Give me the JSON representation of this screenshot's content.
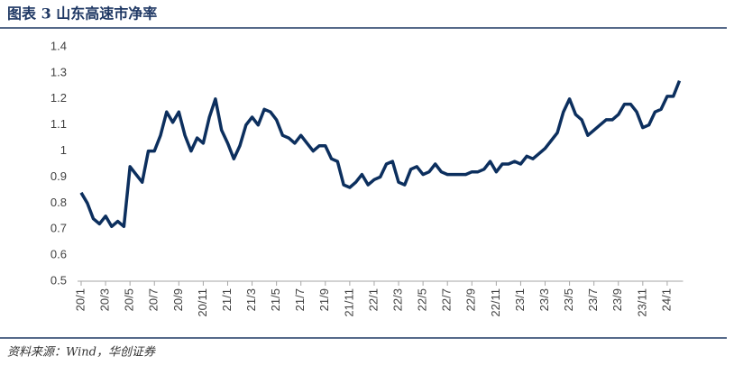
{
  "chart_data": {
    "type": "line",
    "title": "图表 3  山东高速市净率",
    "source": "资料来源：Wind，华创证券",
    "categories": [
      "20/1",
      null,
      null,
      null,
      "20/3",
      null,
      null,
      null,
      "20/5",
      null,
      null,
      null,
      "20/7",
      null,
      null,
      null,
      "20/9",
      null,
      null,
      null,
      "20/11",
      null,
      null,
      null,
      "21/1",
      null,
      null,
      null,
      "21/3",
      null,
      null,
      null,
      "21/5",
      null,
      null,
      null,
      "21/7",
      null,
      null,
      null,
      "21/9",
      null,
      null,
      null,
      "21/11",
      null,
      null,
      null,
      "22/1",
      null,
      null,
      null,
      "22/3",
      null,
      null,
      null,
      "22/5",
      null,
      null,
      null,
      "22/7",
      null,
      null,
      null,
      "22/9",
      null,
      null,
      null,
      "22/11",
      null,
      null,
      null,
      "23/1",
      null,
      null,
      null,
      "23/3",
      null,
      null,
      null,
      "23/5",
      null,
      null,
      null,
      "23/7",
      null,
      null,
      null,
      "23/9",
      null,
      null,
      null,
      "23/11",
      null,
      null,
      null,
      "24/1",
      null,
      null
    ],
    "series": [
      {
        "name": "山东高速市净率",
        "color": "#0c2f5e",
        "values": [
          0.84,
          0.8,
          0.74,
          0.72,
          0.75,
          0.71,
          0.73,
          0.71,
          0.94,
          0.91,
          0.88,
          1.0,
          1.0,
          1.06,
          1.15,
          1.11,
          1.15,
          1.06,
          1.0,
          1.05,
          1.03,
          1.13,
          1.2,
          1.08,
          1.03,
          0.97,
          1.02,
          1.1,
          1.13,
          1.1,
          1.16,
          1.15,
          1.12,
          1.06,
          1.05,
          1.03,
          1.06,
          1.03,
          1.0,
          1.02,
          1.02,
          0.97,
          0.96,
          0.87,
          0.86,
          0.88,
          0.91,
          0.87,
          0.89,
          0.9,
          0.95,
          0.96,
          0.88,
          0.87,
          0.93,
          0.94,
          0.91,
          0.92,
          0.95,
          0.92,
          0.91,
          0.91,
          0.91,
          0.91,
          0.92,
          0.92,
          0.93,
          0.96,
          0.92,
          0.95,
          0.95,
          0.96,
          0.95,
          0.98,
          0.97,
          0.99,
          1.01,
          1.04,
          1.07,
          1.15,
          1.2,
          1.14,
          1.12,
          1.06,
          1.08,
          1.1,
          1.12,
          1.12,
          1.14,
          1.18,
          1.18,
          1.15,
          1.09,
          1.1,
          1.15,
          1.16,
          1.21,
          1.21,
          1.27
        ]
      }
    ],
    "ylim": [
      0.5,
      1.4
    ],
    "yticks": [
      0.5,
      0.6,
      0.7,
      0.8,
      0.9,
      1,
      1.1,
      1.2,
      1.3,
      1.4
    ]
  }
}
